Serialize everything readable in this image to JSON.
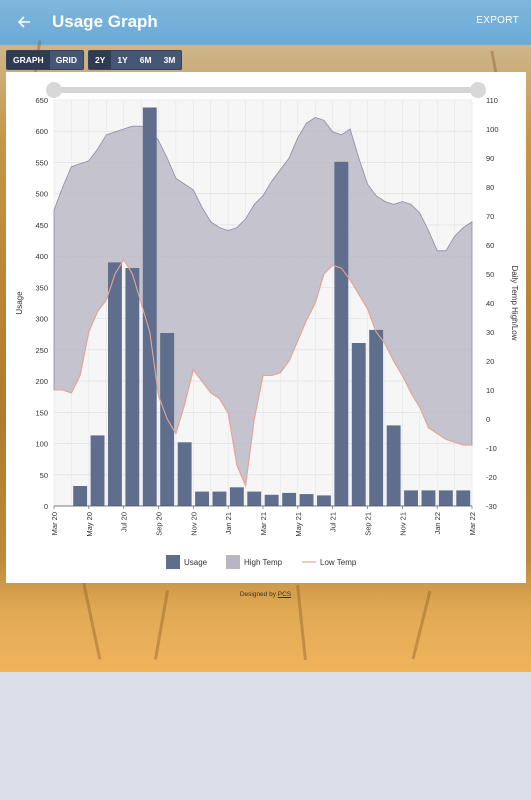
{
  "header": {
    "title": "Usage Graph",
    "export_label": "EXPORT"
  },
  "view_toggle": [
    {
      "label": "GRAPH",
      "active": true
    },
    {
      "label": "GRID",
      "active": false
    }
  ],
  "range_toggle": [
    {
      "label": "2Y",
      "active": true
    },
    {
      "label": "1Y"
    },
    {
      "label": "6M"
    },
    {
      "label": "3M"
    }
  ],
  "footer": {
    "prefix": "Designed by",
    "link": "PCS"
  },
  "colors": {
    "header": "#72b5dc",
    "usage": "#5e6e8c",
    "high_temp_fill": "#b9b6c2",
    "low_temp": "#e7a596"
  },
  "chart_data": {
    "type": "bar",
    "months": [
      "Mar 20",
      "Apr 20",
      "May 20",
      "Jun 20",
      "Jul 20",
      "Aug 20",
      "Sep 20",
      "Oct 20",
      "Nov 20",
      "Dec 20",
      "Jan 21",
      "Feb 21",
      "Mar 21",
      "Apr 21",
      "May 21",
      "Jun 21",
      "Jul 21",
      "Aug 21",
      "Sep 21",
      "Oct 21",
      "Nov 21",
      "Dec 21",
      "Jan 22",
      "Feb 22",
      "Mar 22"
    ],
    "x_tick_labels": [
      "Mar 20",
      "May 20",
      "Jul 20",
      "Sep 20",
      "Nov 20",
      "Jan 21",
      "Mar 21",
      "May 21",
      "Jul 21",
      "Sep 21",
      "Nov 21",
      "Jan 22",
      "Mar 22"
    ],
    "series": [
      {
        "name": "Usage",
        "axis": "left",
        "values": [
          0,
          32,
          113,
          390,
          381,
          638,
          277,
          102,
          23,
          23,
          30,
          23,
          18,
          21,
          19,
          17,
          551,
          261,
          282,
          129,
          25,
          25,
          25,
          25
        ]
      }
    ],
    "temp_x": [
      0,
      0.5,
      1,
      1.5,
      2,
      2.5,
      3,
      3.5,
      4,
      4.5,
      5,
      5.5,
      6,
      6.5,
      7,
      7.5,
      8,
      8.5,
      9,
      9.5,
      10,
      10.5,
      11,
      11.5,
      12,
      12.5,
      13,
      13.5,
      14,
      14.5,
      15,
      15.5,
      16,
      16.5,
      17,
      17.5,
      18,
      18.5,
      19,
      19.5,
      20,
      20.5,
      21,
      21.5,
      22,
      22.5,
      23,
      23.5,
      24
    ],
    "high_temp": [
      72,
      80,
      87,
      88,
      89,
      93,
      98,
      99,
      100,
      101,
      101,
      100,
      96,
      90,
      83,
      81,
      79,
      73,
      68,
      66,
      65,
      66,
      69,
      74,
      77,
      82,
      86,
      90,
      97,
      102,
      104,
      103,
      99,
      98,
      100,
      90,
      81,
      77,
      75,
      74,
      75,
      74,
      71,
      65,
      58,
      58,
      63,
      66,
      68
    ],
    "low_temp": [
      10,
      10,
      9,
      15,
      30,
      37,
      41,
      50,
      55,
      50,
      40,
      30,
      8,
      0,
      -5,
      5,
      17,
      13,
      9,
      7,
      2,
      -16,
      -23,
      0,
      15,
      15,
      16,
      20,
      27,
      34,
      40,
      50,
      53,
      52,
      48,
      43,
      38,
      30,
      26,
      20,
      15,
      9,
      4,
      -3,
      -5,
      -7,
      -8,
      -9,
      -9
    ],
    "left_axis": {
      "label": "Usage",
      "ylim": [
        0,
        650
      ],
      "ticks": [
        0,
        50,
        100,
        150,
        200,
        250,
        300,
        350,
        400,
        450,
        500,
        550,
        600,
        650
      ]
    },
    "right_axis": {
      "label": "Daily Temp High/Low",
      "ylim": [
        -30,
        110
      ],
      "ticks": [
        -30,
        -20,
        -10,
        0,
        10,
        20,
        30,
        40,
        50,
        60,
        70,
        80,
        90,
        100,
        110
      ]
    },
    "legend": [
      {
        "label": "Usage",
        "kind": "box"
      },
      {
        "label": "High Temp",
        "kind": "box-light"
      },
      {
        "label": "Low Temp",
        "kind": "line"
      }
    ],
    "legend_position": "bottom",
    "grid": true,
    "range_slider": true
  }
}
